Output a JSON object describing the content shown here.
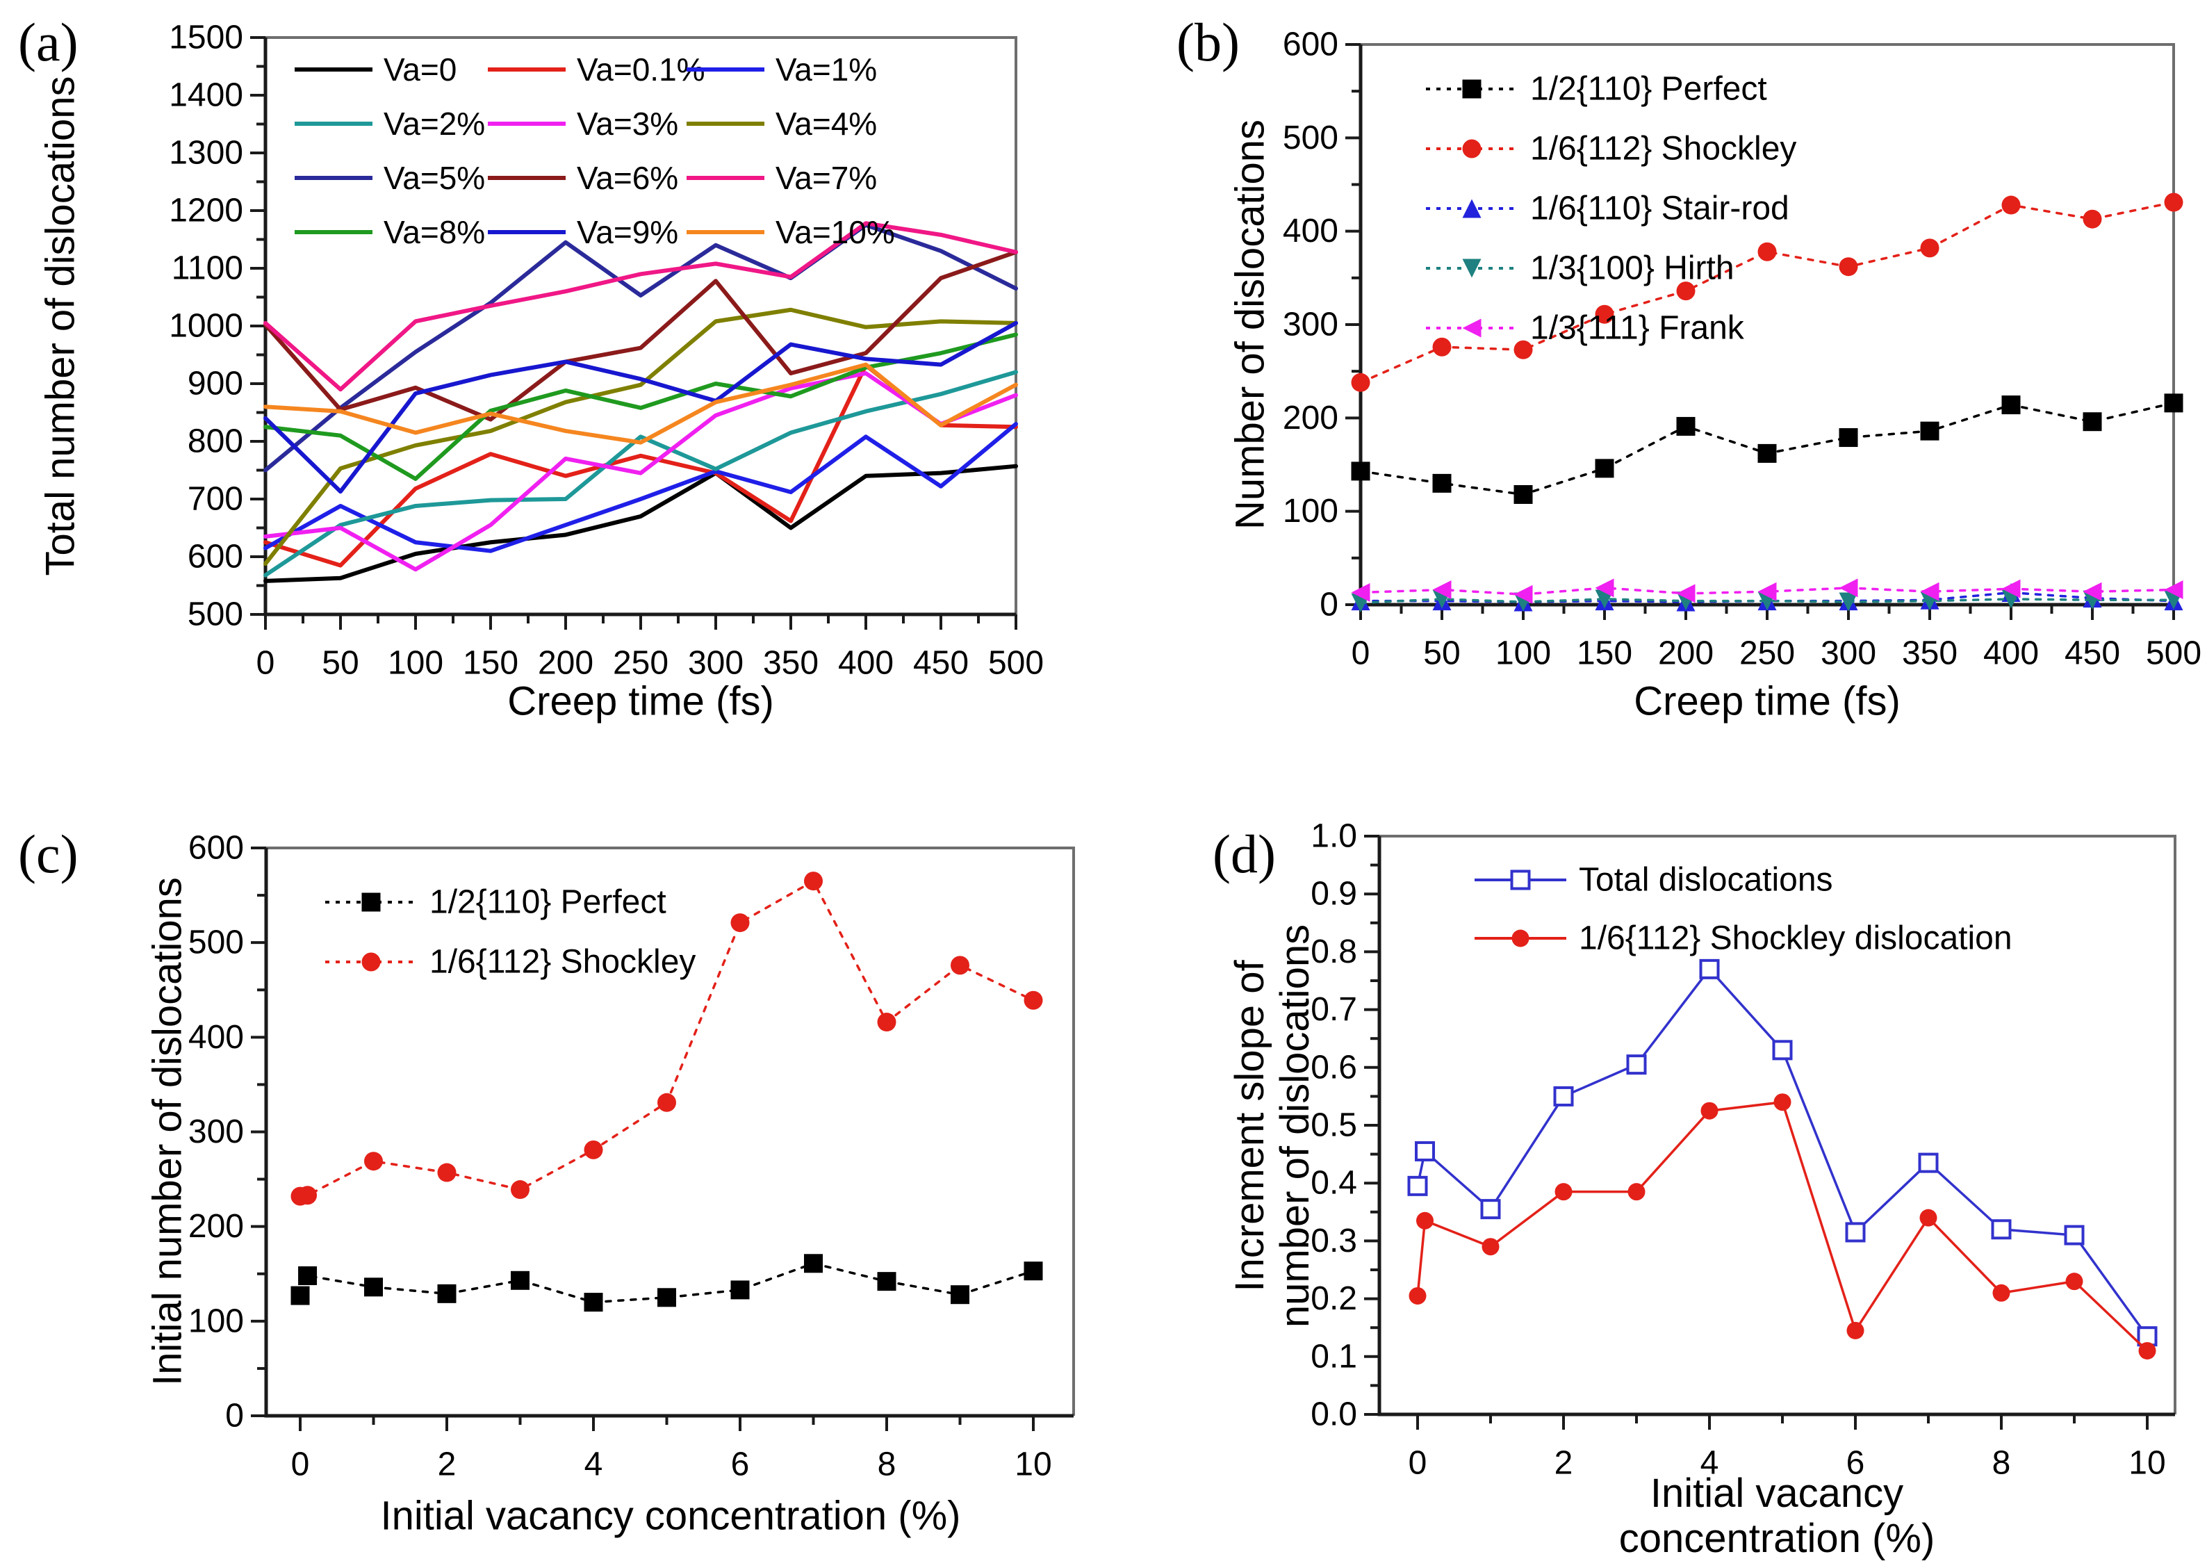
{
  "figure": {
    "background": "#ffffff",
    "axis_color": "#1a1a1a",
    "panels": [
      "(a)",
      "(b)",
      "(c)",
      "(d)"
    ]
  },
  "chart_data": [
    {
      "type": "line",
      "id": "a",
      "panel": "(a)",
      "xlabel": "Creep time (fs)",
      "ylabel": "Total number of dislocations",
      "xlim": [
        0,
        500
      ],
      "ylim": [
        500,
        1500
      ],
      "grid": false,
      "legend_position": "top-inside, 3 columns",
      "xticks": [
        0,
        50,
        100,
        150,
        200,
        250,
        300,
        350,
        400,
        450,
        500
      ],
      "xtick_labels": [
        "0",
        "50",
        "100",
        "150",
        "200",
        "250",
        "300",
        "350",
        "400",
        "450",
        "500"
      ],
      "yticks": [
        500,
        600,
        700,
        800,
        900,
        1000,
        1100,
        1200,
        1300,
        1400,
        1500
      ],
      "ytick_labels": [
        "500",
        "600",
        "700",
        "800",
        "900",
        "1000",
        "1100",
        "1200",
        "1300",
        "1400",
        "1500"
      ],
      "x": [
        0,
        50,
        100,
        150,
        200,
        250,
        300,
        350,
        400,
        450,
        500
      ],
      "series": [
        {
          "name": "Va=0",
          "color": "#000000",
          "marker": null,
          "values": [
            558,
            563,
            605,
            625,
            638,
            670,
            745,
            650,
            740,
            745,
            757
          ]
        },
        {
          "name": "Va=0.1%",
          "color": "#e32119",
          "marker": null,
          "values": [
            625,
            585,
            718,
            778,
            740,
            775,
            745,
            662,
            932,
            828,
            825
          ]
        },
        {
          "name": "Va=1%",
          "color": "#1f1fe8",
          "marker": null,
          "values": [
            615,
            688,
            625,
            610,
            655,
            700,
            748,
            712,
            808,
            722,
            830
          ]
        },
        {
          "name": "Va=2%",
          "color": "#1e9898",
          "marker": null,
          "values": [
            568,
            655,
            688,
            698,
            700,
            808,
            752,
            815,
            852,
            882,
            920
          ]
        },
        {
          "name": "Va=3%",
          "color": "#f020f0",
          "marker": null,
          "values": [
            635,
            650,
            578,
            655,
            770,
            745,
            845,
            892,
            918,
            830,
            880
          ]
        },
        {
          "name": "Va=4%",
          "color": "#7f7f00",
          "marker": null,
          "values": [
            588,
            753,
            793,
            818,
            868,
            898,
            1008,
            1028,
            998,
            1008,
            1005
          ]
        },
        {
          "name": "Va=5%",
          "color": "#2a2a9a",
          "marker": null,
          "values": [
            750,
            858,
            955,
            1040,
            1145,
            1053,
            1140,
            1083,
            1175,
            1130,
            1065
          ]
        },
        {
          "name": "Va=6%",
          "color": "#8b1a1a",
          "marker": null,
          "values": [
            1002,
            855,
            893,
            838,
            938,
            962,
            1078,
            918,
            953,
            1083,
            1128
          ]
        },
        {
          "name": "Va=7%",
          "color": "#f01786",
          "marker": null,
          "values": [
            1005,
            890,
            1008,
            1035,
            1060,
            1090,
            1108,
            1085,
            1178,
            1158,
            1128
          ]
        },
        {
          "name": "Va=8%",
          "color": "#1f9a1f",
          "marker": null,
          "values": [
            825,
            810,
            735,
            853,
            888,
            858,
            900,
            878,
            928,
            953,
            985
          ]
        },
        {
          "name": "Va=9%",
          "color": "#1717cf",
          "marker": null,
          "values": [
            840,
            713,
            883,
            915,
            938,
            908,
            870,
            968,
            943,
            933,
            1005
          ]
        },
        {
          "name": "Va=10%",
          "color": "#f5861f",
          "marker": null,
          "values": [
            860,
            852,
            815,
            848,
            818,
            798,
            868,
            898,
            933,
            828,
            898
          ]
        }
      ]
    },
    {
      "type": "line",
      "id": "b",
      "panel": "(b)",
      "xlabel": "Creep time (fs)",
      "ylabel": "Number of dislocations",
      "xlim": [
        0,
        500
      ],
      "ylim": [
        0,
        600
      ],
      "grid": false,
      "legend_position": "top-left inside",
      "xticks": [
        0,
        50,
        100,
        150,
        200,
        250,
        300,
        350,
        400,
        450,
        500
      ],
      "xtick_labels": [
        "0",
        "50",
        "100",
        "150",
        "200",
        "250",
        "300",
        "350",
        "400",
        "450",
        "500"
      ],
      "yticks": [
        0,
        100,
        200,
        300,
        400,
        500,
        600
      ],
      "ytick_labels": [
        "0",
        "100",
        "200",
        "300",
        "400",
        "500",
        "600"
      ],
      "x": [
        0,
        50,
        100,
        150,
        200,
        250,
        300,
        350,
        400,
        450,
        500
      ],
      "series": [
        {
          "name": "1/2{110} Perfect",
          "color": "#000000",
          "marker": "square",
          "values": [
            143,
            130,
            118,
            146,
            191,
            162,
            179,
            186,
            214,
            196,
            216
          ]
        },
        {
          "name": "1/6{112} Shockley",
          "color": "#e32119",
          "marker": "circle",
          "values": [
            238,
            276,
            273,
            311,
            336,
            378,
            362,
            382,
            428,
            413,
            431
          ]
        },
        {
          "name": "1/6{110} Stair-rod",
          "color": "#2222dd",
          "marker": "triangle-up",
          "values": [
            4,
            4,
            3,
            4,
            3,
            4,
            4,
            5,
            13,
            7,
            4
          ]
        },
        {
          "name": "1/3{100} Hirth",
          "color": "#1e8080",
          "marker": "triangle-down",
          "values": [
            2,
            6,
            3,
            6,
            4,
            4,
            3,
            4,
            6,
            5,
            5
          ]
        },
        {
          "name": "1/3{111} Frank",
          "color": "#f020f0",
          "marker": "triangle-left",
          "values": [
            13,
            16,
            11,
            18,
            12,
            14,
            18,
            14,
            17,
            14,
            16
          ]
        }
      ]
    },
    {
      "type": "line",
      "id": "c",
      "panel": "(c)",
      "xlabel": "Initial vacancy concentration (%)",
      "ylabel": "Initial number of dislocations",
      "xlim": [
        0,
        10
      ],
      "ylim": [
        0,
        600
      ],
      "grid": false,
      "legend_position": "top-left inside",
      "xticks": [
        0,
        2,
        4,
        6,
        8,
        10
      ],
      "xtick_labels": [
        "0",
        "2",
        "4",
        "6",
        "8",
        "10"
      ],
      "yticks": [
        0,
        100,
        200,
        300,
        400,
        500,
        600
      ],
      "ytick_labels": [
        "0",
        "100",
        "200",
        "300",
        "400",
        "500",
        "600"
      ],
      "x": [
        0,
        0.1,
        1,
        2,
        3,
        4,
        5,
        6,
        7,
        8,
        9,
        10
      ],
      "series": [
        {
          "name": "1/2{110} Perfect",
          "color": "#000000",
          "marker": "square",
          "values": [
            127,
            148,
            136,
            129,
            143,
            120,
            125,
            133,
            161,
            142,
            128,
            153
          ]
        },
        {
          "name": "1/6{112} Shockley",
          "color": "#e32119",
          "marker": "circle",
          "values": [
            232,
            233,
            269,
            257,
            239,
            281,
            331,
            521,
            565,
            416,
            476,
            439
          ]
        }
      ]
    },
    {
      "type": "line",
      "id": "d",
      "panel": "(d)",
      "xlabel": "Initial vacancy concentration (%)",
      "ylabel": "Increment slope of\nnumber of dislocations",
      "xlim": [
        0,
        10
      ],
      "ylim": [
        0.0,
        1.0
      ],
      "grid": false,
      "legend_position": "top-left inside",
      "xticks": [
        0,
        2,
        4,
        6,
        8,
        10
      ],
      "xtick_labels": [
        "0",
        "2",
        "4",
        "6",
        "8",
        "10"
      ],
      "yticks": [
        0.0,
        0.1,
        0.2,
        0.3,
        0.4,
        0.5,
        0.6,
        0.7,
        0.8,
        0.9,
        1.0
      ],
      "ytick_labels": [
        "0.0",
        "0.1",
        "0.2",
        "0.3",
        "0.4",
        "0.5",
        "0.6",
        "0.7",
        "0.8",
        "0.9",
        "1.0"
      ],
      "x": [
        0,
        0.1,
        1,
        2,
        3,
        4,
        5,
        6,
        7,
        8,
        9,
        10
      ],
      "series": [
        {
          "name": "Total dislocations",
          "color": "#3232cd",
          "marker": "square-open",
          "values": [
            0.395,
            0.455,
            0.355,
            0.55,
            0.605,
            0.77,
            0.63,
            0.315,
            0.435,
            0.32,
            0.31,
            0.135
          ]
        },
        {
          "name": "1/6{112} Shockley dislocation",
          "color": "#e32119",
          "marker": "circle",
          "values": [
            0.205,
            0.335,
            0.29,
            0.385,
            0.385,
            0.525,
            0.54,
            0.145,
            0.34,
            0.21,
            0.23,
            0.11
          ]
        }
      ]
    }
  ]
}
